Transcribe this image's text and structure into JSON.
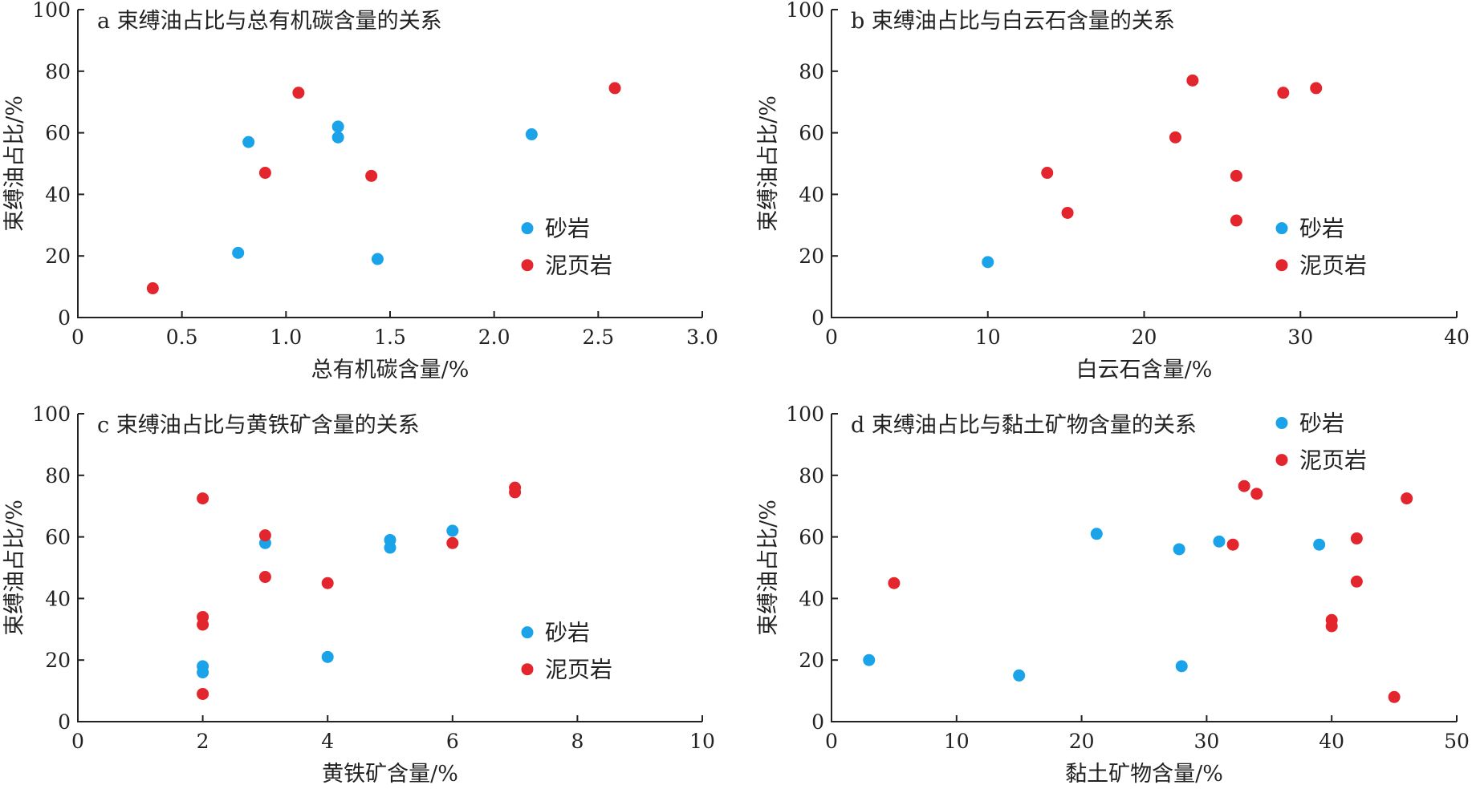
{
  "chart_data": [
    {
      "type": "scatter",
      "title": "a 束缚油占比与总有机碳含量的关系",
      "xlabel": "总有机碳含量/%",
      "ylabel": "束缚油占比/%",
      "xlim": [
        0,
        3.0
      ],
      "ylim": [
        0,
        100
      ],
      "x_ticks": [
        "0",
        "0.5",
        "1.0",
        "1.5",
        "2.0",
        "2.5",
        "3.0"
      ],
      "y_ticks": [
        "0",
        "20",
        "40",
        "60",
        "80",
        "100"
      ],
      "legend_position": "right",
      "series": [
        {
          "name": "砂岩",
          "color": "#1aa3e8",
          "points": [
            [
              0.77,
              21
            ],
            [
              0.82,
              57
            ],
            [
              1.25,
              62
            ],
            [
              1.25,
              58.5
            ],
            [
              1.44,
              19
            ],
            [
              2.18,
              59.5
            ]
          ]
        },
        {
          "name": "泥页岩",
          "color": "#e3262d",
          "points": [
            [
              0.36,
              9.5
            ],
            [
              0.9,
              47
            ],
            [
              1.06,
              73
            ],
            [
              1.41,
              46
            ],
            [
              2.58,
              74.5
            ]
          ]
        }
      ]
    },
    {
      "type": "scatter",
      "title": "b 束缚油占比与白云石含量的关系",
      "xlabel": "白云石含量/%",
      "ylabel": "束缚油占比/%",
      "xlim": [
        0,
        40
      ],
      "ylim": [
        0,
        100
      ],
      "x_ticks": [
        "0",
        "10",
        "20",
        "30",
        "40"
      ],
      "y_ticks": [
        "0",
        "20",
        "40",
        "60",
        "80",
        "100"
      ],
      "legend_position": "right",
      "series": [
        {
          "name": "砂岩",
          "color": "#1aa3e8",
          "points": [
            [
              10,
              18
            ]
          ]
        },
        {
          "name": "泥页岩",
          "color": "#e3262d",
          "points": [
            [
              13.8,
              47
            ],
            [
              15.1,
              34
            ],
            [
              22,
              58.5
            ],
            [
              23.1,
              77
            ],
            [
              25.9,
              46
            ],
            [
              25.9,
              31.5
            ],
            [
              28.9,
              73
            ],
            [
              31,
              74.5
            ]
          ]
        }
      ]
    },
    {
      "type": "scatter",
      "title": "c 束缚油占比与黄铁矿含量的关系",
      "xlabel": "黄铁矿含量/%",
      "ylabel": "束缚油占比/%",
      "xlim": [
        0,
        10
      ],
      "ylim": [
        0,
        100
      ],
      "x_ticks": [
        "0",
        "2",
        "4",
        "6",
        "8",
        "10"
      ],
      "y_ticks": [
        "0",
        "20",
        "40",
        "60",
        "80",
        "100"
      ],
      "legend_position": "right",
      "series": [
        {
          "name": "砂岩",
          "color": "#1aa3e8",
          "points": [
            [
              2,
              18
            ],
            [
              2,
              16
            ],
            [
              3,
              58
            ],
            [
              4,
              21
            ],
            [
              5,
              59
            ],
            [
              5,
              56.5
            ],
            [
              6,
              62
            ]
          ]
        },
        {
          "name": "泥页岩",
          "color": "#e3262d",
          "points": [
            [
              2,
              72.5
            ],
            [
              2,
              34
            ],
            [
              2,
              31.5
            ],
            [
              2,
              9
            ],
            [
              3,
              60.5
            ],
            [
              3,
              47
            ],
            [
              4,
              45
            ],
            [
              6,
              58
            ],
            [
              7,
              76
            ],
            [
              7,
              74.5
            ]
          ]
        }
      ]
    },
    {
      "type": "scatter",
      "title": "d 束缚油占比与黏土矿物含量的关系",
      "xlabel": "黏土矿物含量/%",
      "ylabel": "束缚油占比/%",
      "xlim": [
        0,
        50
      ],
      "ylim": [
        0,
        100
      ],
      "x_ticks": [
        "0",
        "10",
        "20",
        "30",
        "40",
        "50"
      ],
      "y_ticks": [
        "0",
        "20",
        "40",
        "60",
        "80",
        "100"
      ],
      "legend_position": "top-right",
      "series": [
        {
          "name": "砂岩",
          "color": "#1aa3e8",
          "points": [
            [
              3,
              20
            ],
            [
              15,
              15
            ],
            [
              21.2,
              61
            ],
            [
              27.8,
              56
            ],
            [
              28,
              18
            ],
            [
              31,
              58.5
            ],
            [
              39,
              57.5
            ]
          ]
        },
        {
          "name": "泥页岩",
          "color": "#e3262d",
          "points": [
            [
              5,
              45
            ],
            [
              32.1,
              57.5
            ],
            [
              33,
              76.5
            ],
            [
              34,
              74
            ],
            [
              40,
              33
            ],
            [
              40,
              31
            ],
            [
              42,
              59.5
            ],
            [
              42,
              45.5
            ],
            [
              45,
              8
            ],
            [
              46,
              72.5
            ]
          ]
        }
      ]
    }
  ]
}
